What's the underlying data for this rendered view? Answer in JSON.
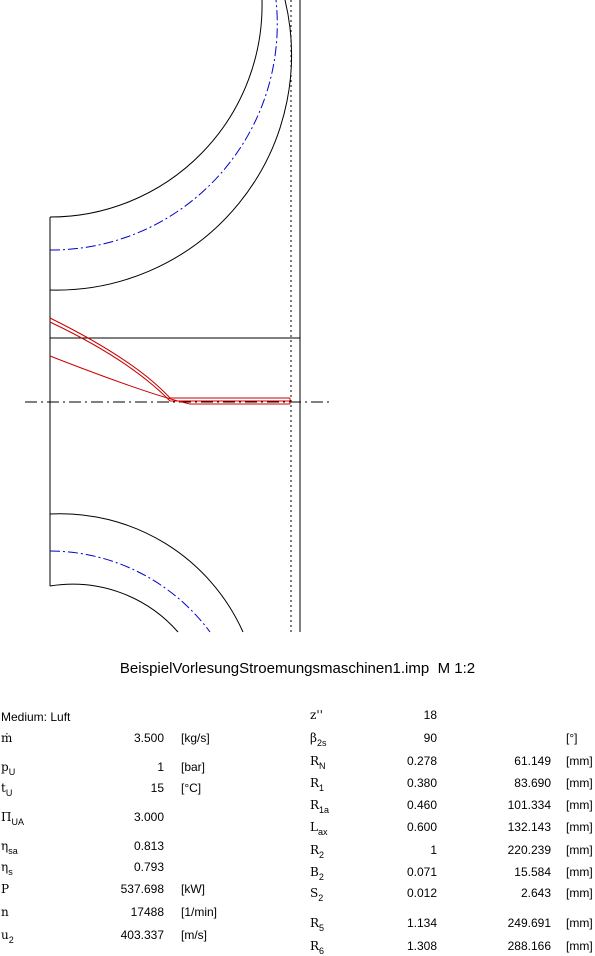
{
  "title": "BeispielVorlesungStroemungsmaschinen1.imp",
  "scale": "M 1:2",
  "colors": {
    "outline": "#000000",
    "blade": "#cc0000",
    "centerline": "#0000cc"
  },
  "left": {
    "medium": "Medium: Luft",
    "rows": [
      {
        "sym": "ṁ",
        "sub": "",
        "val": "3.500",
        "unit": "[kg/s]"
      },
      {
        "sym": "p",
        "sub": "U",
        "val": "1",
        "unit": "[bar]"
      },
      {
        "sym": "t",
        "sub": "U",
        "val": "15",
        "unit": "[°C]"
      },
      {
        "sym": "Π",
        "sub": "UA",
        "val": "3.000",
        "unit": ""
      },
      {
        "sym": "η",
        "sub": "sa",
        "val": "0.813",
        "unit": ""
      },
      {
        "sym": "η",
        "sub": "s",
        "val": "0.793",
        "unit": ""
      },
      {
        "sym": "P",
        "sub": "",
        "val": "537.698",
        "unit": "[kW]"
      },
      {
        "sym": "n",
        "sub": "",
        "val": "17488",
        "unit": "[1/min]"
      },
      {
        "sym": "u",
        "sub": "2",
        "val": "403.337",
        "unit": "[m/s]"
      }
    ]
  },
  "right": {
    "rows": [
      {
        "sym": "z''",
        "sub": "",
        "val": "18",
        "mm": "",
        "unit": ""
      },
      {
        "sym": "β",
        "sub": "2s",
        "val": "90",
        "mm": "",
        "unit": "[°]"
      },
      {
        "sym": "R",
        "sub": "N",
        "val": "0.278",
        "mm": "61.149",
        "unit": "[mm]"
      },
      {
        "sym": "R",
        "sub": "1",
        "val": "0.380",
        "mm": "83.690",
        "unit": "[mm]"
      },
      {
        "sym": "R",
        "sub": "1a",
        "val": "0.460",
        "mm": "101.334",
        "unit": "[mm]"
      },
      {
        "sym": "L",
        "sub": "ax",
        "val": "0.600",
        "mm": "132.143",
        "unit": "[mm]"
      },
      {
        "sym": "R",
        "sub": "2",
        "val": "1",
        "mm": "220.239",
        "unit": "[mm]"
      },
      {
        "sym": "B",
        "sub": "2",
        "val": "0.071",
        "mm": "15.584",
        "unit": "[mm]"
      },
      {
        "sym": "S",
        "sub": "2",
        "val": "0.012",
        "mm": "2.643",
        "unit": "[mm]"
      },
      {
        "sym": "R",
        "sub": "5",
        "val": "1.134",
        "mm": "249.691",
        "unit": "[mm]"
      },
      {
        "sym": "R",
        "sub": "6",
        "val": "1.308",
        "mm": "288.166",
        "unit": "[mm]"
      }
    ]
  }
}
